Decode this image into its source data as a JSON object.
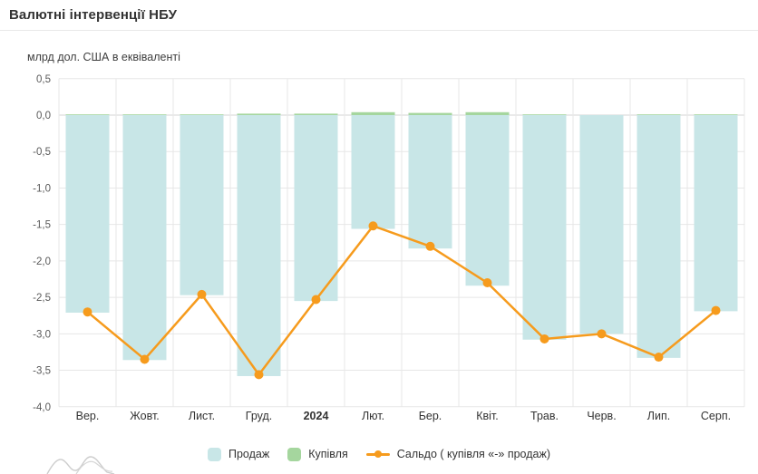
{
  "header": {
    "title": "Валютні інтервенції НБУ"
  },
  "chart_data": {
    "type": "bar",
    "subtype": "bars-with-line-overlay",
    "title": "Валютні інтервенції НБУ",
    "xlabel": "",
    "ylabel": "млрд дол. США в еквіваленті",
    "categories": [
      "Вер.",
      "Жовт.",
      "Лист.",
      "Груд.",
      "2024",
      "Лют.",
      "Бер.",
      "Квіт.",
      "Трав.",
      "Черв.",
      "Лип.",
      "Серп."
    ],
    "bold_category": "2024",
    "series": [
      {
        "name": "Продаж",
        "type": "bar",
        "color": "#c8e6e7",
        "values": [
          -2.71,
          -3.36,
          -2.47,
          -3.58,
          -2.55,
          -1.56,
          -1.83,
          -2.34,
          -3.08,
          -3.0,
          -3.33,
          -2.69
        ]
      },
      {
        "name": "Купівля",
        "type": "bar",
        "color": "#a5d69e",
        "values": [
          0.01,
          0.01,
          0.01,
          0.02,
          0.02,
          0.04,
          0.03,
          0.04,
          0.01,
          0.0,
          0.01,
          0.01
        ]
      },
      {
        "name": "Сальдо ( купівля «-» продаж)",
        "type": "line",
        "color": "#f69b1d",
        "values": [
          -2.7,
          -3.35,
          -2.46,
          -3.56,
          -2.53,
          -1.52,
          -1.8,
          -2.3,
          -3.07,
          -3.0,
          -3.32,
          -2.68
        ]
      }
    ],
    "ylim": [
      -4.0,
      0.5
    ],
    "yticks": [
      {
        "v": 0.5,
        "label": "0,5"
      },
      {
        "v": 0.0,
        "label": "0,0"
      },
      {
        "v": -0.5,
        "label": "-0,5"
      },
      {
        "v": -1.0,
        "label": "-1,0"
      },
      {
        "v": -1.5,
        "label": "-1,5"
      },
      {
        "v": -2.0,
        "label": "-2,0"
      },
      {
        "v": -2.5,
        "label": "-2,5"
      },
      {
        "v": -3.0,
        "label": "-3,0"
      },
      {
        "v": -3.5,
        "label": "-3,5"
      },
      {
        "v": -4.0,
        "label": "-4,0"
      }
    ],
    "grid": true,
    "legend_position": "bottom",
    "colors": {
      "gridline": "#e7e7e7",
      "zero_line": "#d6d6d6",
      "y_tick_text": "#595959",
      "x_tick_text": "#333333"
    }
  }
}
